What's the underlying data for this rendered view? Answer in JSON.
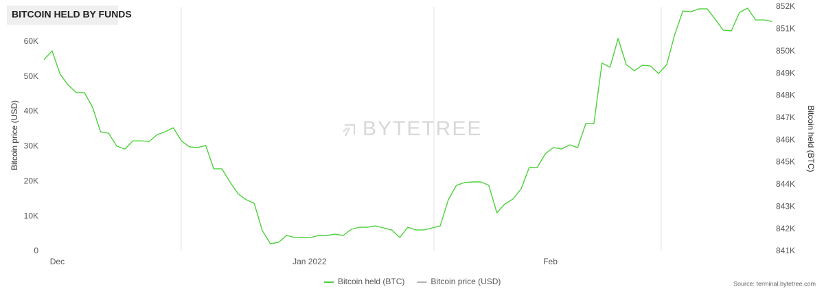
{
  "chart_data": {
    "type": "line",
    "title": "BITCOIN HELD BY FUNDS",
    "watermark": "BYTETREE",
    "source": "Source: terminal.bytetree.com",
    "ylabel": "Bitcoin price (USD)",
    "y2label": "Bitcoin held (BTC)",
    "categories": [
      null,
      "Dec",
      null,
      null,
      null,
      null,
      null,
      null,
      null,
      null,
      null,
      null,
      null,
      null,
      null,
      null,
      null,
      null,
      null,
      null,
      null,
      null,
      null,
      null,
      null,
      null,
      null,
      null,
      null,
      null,
      null,
      "Jan 2022",
      null,
      null,
      null,
      null,
      null,
      null,
      null,
      null,
      null,
      null,
      null,
      null,
      null,
      null,
      null,
      null,
      null,
      null,
      null,
      null,
      null,
      null,
      null,
      null,
      null,
      null,
      null,
      null,
      null,
      null,
      "Feb",
      null,
      null,
      null,
      null,
      null,
      null,
      null,
      null,
      null,
      null,
      null,
      null,
      null,
      null,
      null,
      null,
      null,
      null,
      null,
      null,
      null,
      null,
      null,
      null,
      null,
      null,
      null,
      null
    ],
    "ylim": [
      0,
      70000
    ],
    "yticks": [
      {
        "value": 0,
        "label": "0"
      },
      {
        "value": 10000,
        "label": "10K"
      },
      {
        "value": 20000,
        "label": "20K"
      },
      {
        "value": 30000,
        "label": "30K"
      },
      {
        "value": 40000,
        "label": "40K"
      },
      {
        "value": 50000,
        "label": "50K"
      },
      {
        "value": 60000,
        "label": "60K"
      }
    ],
    "y2lim": [
      841000,
      852000
    ],
    "y2ticks": [
      {
        "value": 841000,
        "label": "841K"
      },
      {
        "value": 842000,
        "label": "842K"
      },
      {
        "value": 843000,
        "label": "843K"
      },
      {
        "value": 844000,
        "label": "844K"
      },
      {
        "value": 845000,
        "label": "845K"
      },
      {
        "value": 846000,
        "label": "846K"
      },
      {
        "value": 847000,
        "label": "847K"
      },
      {
        "value": 848000,
        "label": "848K"
      },
      {
        "value": 849000,
        "label": "849K"
      },
      {
        "value": 850000,
        "label": "850K"
      },
      {
        "value": 851000,
        "label": "851K"
      },
      {
        "value": 852000,
        "label": "852K"
      }
    ],
    "series": [
      {
        "name": "Bitcoin held (BTC)",
        "color": "#4cd13a",
        "axis": "y2",
        "values": [
          849620,
          850020,
          848970,
          848480,
          848140,
          848140,
          847490,
          846380,
          846310,
          845730,
          845600,
          845970,
          845970,
          845940,
          846250,
          846380,
          846560,
          845970,
          845700,
          845670,
          845760,
          844710,
          844710,
          844120,
          843590,
          843320,
          843160,
          841930,
          841340,
          841400,
          841710,
          841620,
          841620,
          841620,
          841710,
          841710,
          841770,
          841710,
          841990,
          842080,
          842080,
          842140,
          842050,
          841960,
          841620,
          842080,
          841960,
          841960,
          842050,
          842140,
          843320,
          843970,
          844090,
          844120,
          844120,
          843970,
          842730,
          843130,
          843350,
          843810,
          844770,
          844770,
          845390,
          845670,
          845600,
          845790,
          845670,
          846750,
          846750,
          849470,
          849280,
          850580,
          849400,
          849130,
          849370,
          849340,
          849000,
          849400,
          850760,
          851810,
          851780,
          851910,
          851910,
          851440,
          850950,
          850920,
          851750,
          851940,
          851410,
          851410,
          851350
        ]
      },
      {
        "name": "Bitcoin price (USD)",
        "color": "#b0b0b0",
        "axis": "y",
        "visible": false
      }
    ]
  }
}
